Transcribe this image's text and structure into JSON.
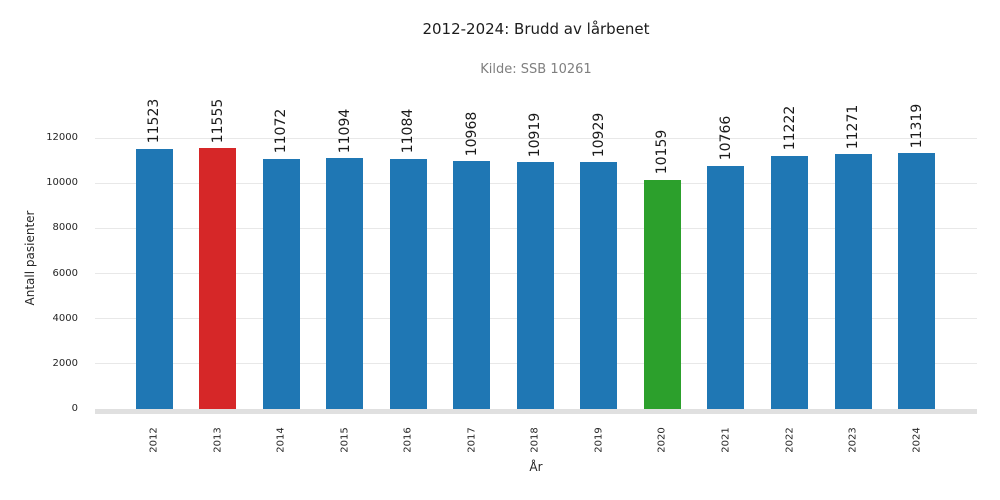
{
  "chart_data": {
    "type": "bar",
    "title": "2012-2024: Brudd av lårbenet",
    "subtitle": "Kilde: SSB 10261",
    "xlabel": "År",
    "ylabel": "Antall pasienter",
    "categories": [
      "2012",
      "2013",
      "2014",
      "2015",
      "2016",
      "2017",
      "2018",
      "2019",
      "2020",
      "2021",
      "2022",
      "2023",
      "2024"
    ],
    "values": [
      11523,
      11555,
      11072,
      11094,
      11084,
      10968,
      10919,
      10929,
      10159,
      10766,
      11222,
      11271,
      11319
    ],
    "bar_colors": [
      "#1f77b4",
      "#d62728",
      "#1f77b4",
      "#1f77b4",
      "#1f77b4",
      "#1f77b4",
      "#1f77b4",
      "#1f77b4",
      "#2ca02c",
      "#1f77b4",
      "#1f77b4",
      "#1f77b4",
      "#1f77b4"
    ],
    "value_labels": [
      "11523",
      "11555",
      "11072",
      "11094",
      "11084",
      "10968",
      "10919",
      "10929",
      "10159",
      "10766",
      "11222",
      "11271",
      "11319"
    ],
    "yticks": [
      0,
      2000,
      4000,
      6000,
      8000,
      10000,
      12000
    ],
    "ylim": [
      0,
      12000
    ],
    "grid": "horizontal",
    "legend": "none",
    "value_label_rotation": 90,
    "xtick_rotation": 90,
    "colors": {
      "default_bar": "#1f77b4",
      "highlight_2013": "#d62728",
      "highlight_2020": "#2ca02c",
      "gridline": "#e8e8e8",
      "axis_line": "#e0e0e0",
      "title_text": "#1c1c1c",
      "subtitle_text": "#7f7f7f"
    }
  }
}
